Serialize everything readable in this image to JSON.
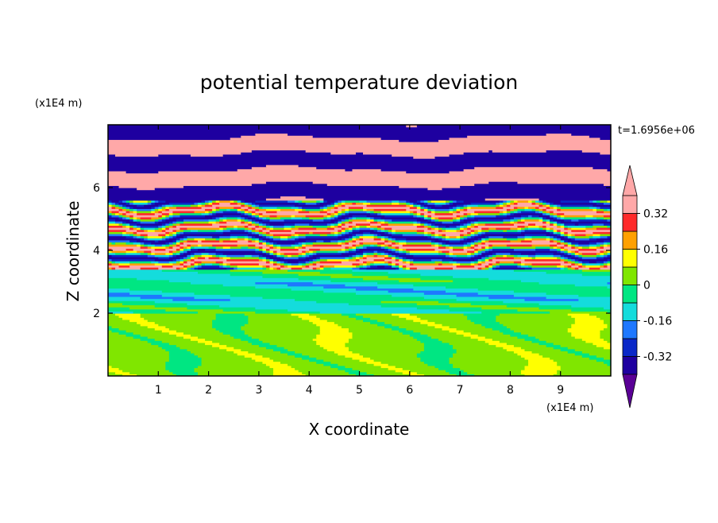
{
  "chart_data": {
    "type": "heatmap",
    "title": "potential temperature deviation",
    "xlabel": "X coordinate",
    "ylabel": "Z coordinate",
    "x_unit": "(x1E4 m)",
    "y_unit": "(x1E4 m)",
    "time_label": "t=1.6956e+06",
    "xlim": [
      0,
      10
    ],
    "ylim": [
      0,
      8
    ],
    "x_ticks": [
      "1",
      "2",
      "3",
      "4",
      "5",
      "6",
      "7",
      "8",
      "9"
    ],
    "y_ticks": [
      "2",
      "4",
      "6"
    ],
    "x_tick_values": [
      1,
      2,
      3,
      4,
      5,
      6,
      7,
      8,
      9
    ],
    "y_tick_values": [
      2,
      4,
      6
    ],
    "colorbar": {
      "levels": [
        -0.4,
        -0.32,
        -0.24,
        -0.16,
        -0.08,
        0,
        0.08,
        0.16,
        0.24,
        0.32,
        0.4
      ],
      "colors": [
        "#5a0096",
        "#1e00a0",
        "#0a28c8",
        "#1e78ff",
        "#14dcdc",
        "#00e682",
        "#80e600",
        "#ffff00",
        "#ffa000",
        "#ff2a2a",
        "#ffa8a8"
      ],
      "labels": [
        "0.32",
        "0.16",
        "0",
        "-0.16",
        "-0.32"
      ],
      "label_values": [
        0.32,
        0.16,
        0,
        -0.16,
        -0.32
      ]
    },
    "regions": [
      {
        "z_range": [
          0,
          2.0
        ],
        "description_level": 0.04,
        "pattern": "green mix of 0 and +0.08 with swirls"
      },
      {
        "z_range": [
          2.0,
          3.5
        ],
        "description_level": -0.08,
        "pattern": "cyan/blue/green band"
      },
      {
        "z_range": [
          3.5,
          5.5
        ],
        "description_level": 0.0,
        "pattern": "strongly mixed layers of all colors"
      },
      {
        "z_range": [
          5.5,
          8.0
        ],
        "description_level": 0.4,
        "pattern": "alternating pink (+) and purple (-) layers"
      }
    ]
  }
}
